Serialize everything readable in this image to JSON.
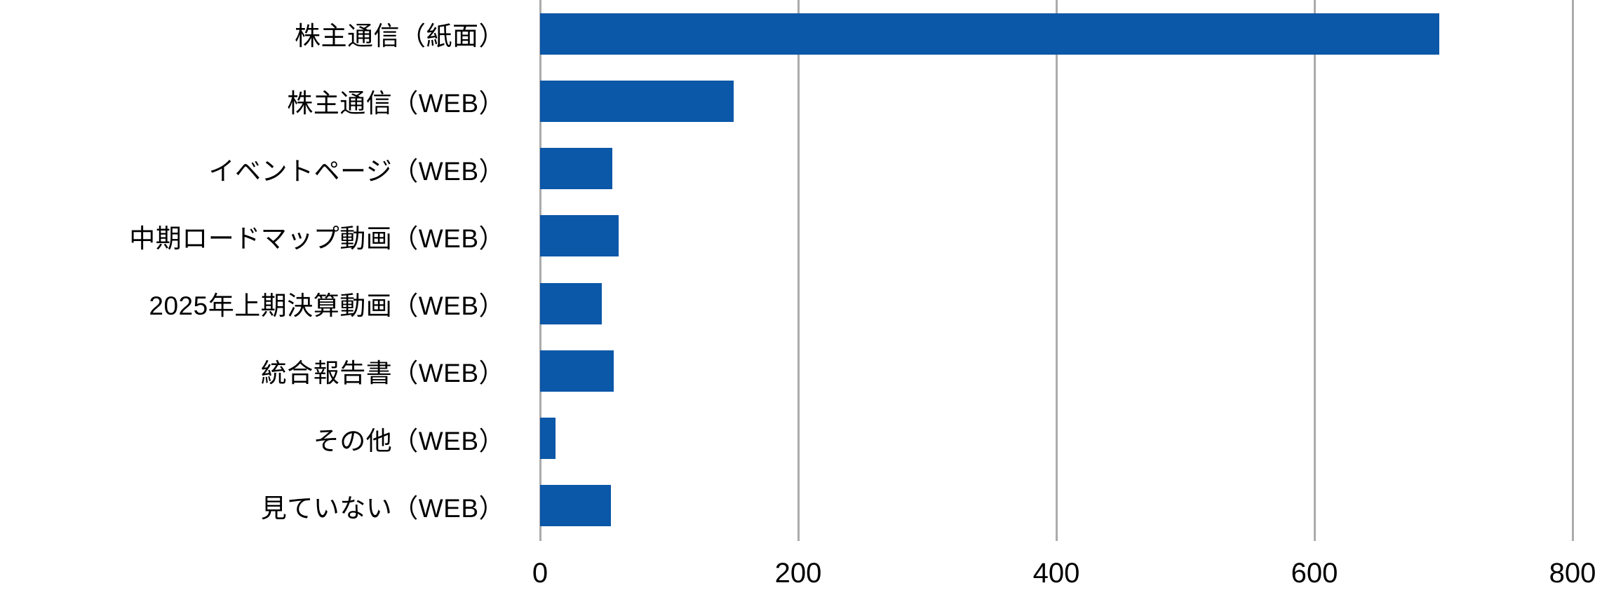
{
  "page": {
    "background_color": "#ffffff"
  },
  "chart_data": {
    "type": "bar",
    "orientation": "horizontal",
    "title": "",
    "xlabel": "",
    "ylabel": "",
    "categories": [
      "株主通信（紙面）",
      "株主通信（WEB）",
      "イベントページ（WEB）",
      "中期ロードマップ動画（WEB）",
      "2025年上期決算動画（WEB）",
      "統合報告書（WEB）",
      "その他（WEB）",
      "見ていない（WEB）"
    ],
    "values": [
      697,
      150,
      56,
      61,
      48,
      57,
      12,
      55
    ],
    "xlim": [
      0,
      800
    ],
    "x_tick_values": [
      0,
      200,
      400,
      600,
      800
    ],
    "x_tick_labels": [
      "0",
      "200",
      "400",
      "600",
      "800"
    ],
    "grid": true,
    "legend_position": "none",
    "bar_color": "#0b57a8",
    "gridline_color": "#ababab",
    "axis_line_color": "#ababab",
    "text_color": "#000000"
  }
}
